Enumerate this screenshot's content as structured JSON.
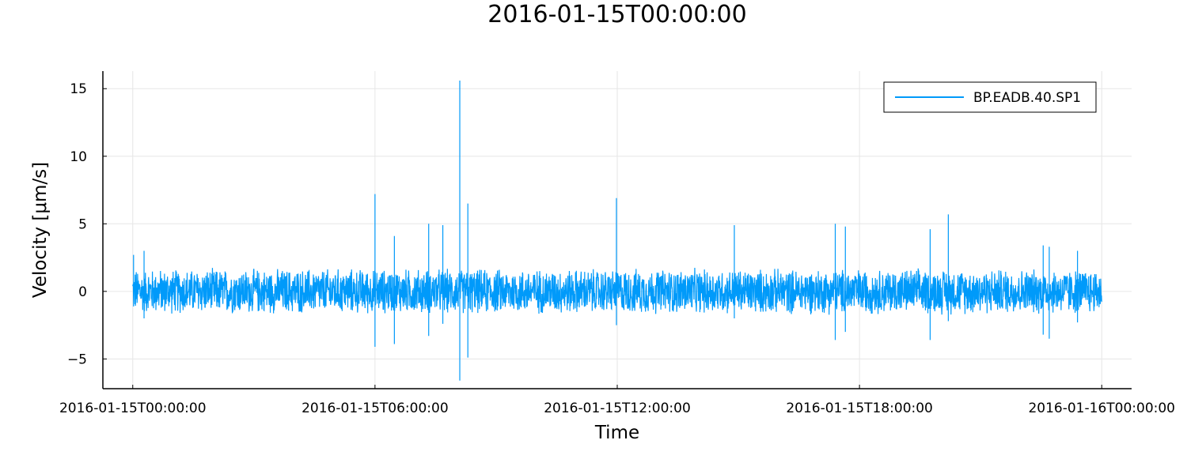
{
  "chart_data": {
    "type": "line",
    "title": "2016-01-15T00:00:00",
    "xlabel": "Time",
    "ylabel": "Velocity [μm/s]",
    "x_ticks": [
      "2016-01-15T00:00:00",
      "2016-01-15T06:00:00",
      "2016-01-15T12:00:00",
      "2016-01-15T18:00:00",
      "2016-01-16T00:00:00"
    ],
    "y_ticks": [
      -5,
      0,
      5,
      10,
      15
    ],
    "x_range": [
      "2016-01-15T00:00:00",
      "2016-01-16T00:00:00"
    ],
    "xlim_hours": [
      -0.74,
      24.74
    ],
    "ylim": [
      -7.2,
      16.3
    ],
    "grid": true,
    "legend_position": "top-right",
    "series": [
      {
        "name": "BP.EADB.40.SP1",
        "color": "#009AFA",
        "noise_envelope": 1.8,
        "spikes": [
          {
            "t_hours": 0.02,
            "max": 2.7,
            "min": -1.0
          },
          {
            "t_hours": 0.28,
            "max": 3.0,
            "min": -2.0
          },
          {
            "t_hours": 6.0,
            "max": 7.2,
            "min": -4.1
          },
          {
            "t_hours": 6.48,
            "max": 4.1,
            "min": -3.9
          },
          {
            "t_hours": 7.33,
            "max": 5.0,
            "min": -3.3
          },
          {
            "t_hours": 7.68,
            "max": 4.9,
            "min": -2.4
          },
          {
            "t_hours": 8.1,
            "max": 15.6,
            "min": -6.6
          },
          {
            "t_hours": 8.3,
            "max": 6.5,
            "min": -4.9
          },
          {
            "t_hours": 11.98,
            "max": 6.9,
            "min": -2.5
          },
          {
            "t_hours": 14.9,
            "max": 4.9,
            "min": -2.0
          },
          {
            "t_hours": 17.4,
            "max": 5.0,
            "min": -3.6
          },
          {
            "t_hours": 17.65,
            "max": 4.8,
            "min": -3.0
          },
          {
            "t_hours": 19.75,
            "max": 4.6,
            "min": -3.6
          },
          {
            "t_hours": 20.2,
            "max": 5.7,
            "min": -2.2
          },
          {
            "t_hours": 22.55,
            "max": 3.4,
            "min": -3.2
          },
          {
            "t_hours": 22.7,
            "max": 3.3,
            "min": -3.5
          },
          {
            "t_hours": 23.4,
            "max": 3.0,
            "min": -2.3
          }
        ]
      }
    ]
  }
}
